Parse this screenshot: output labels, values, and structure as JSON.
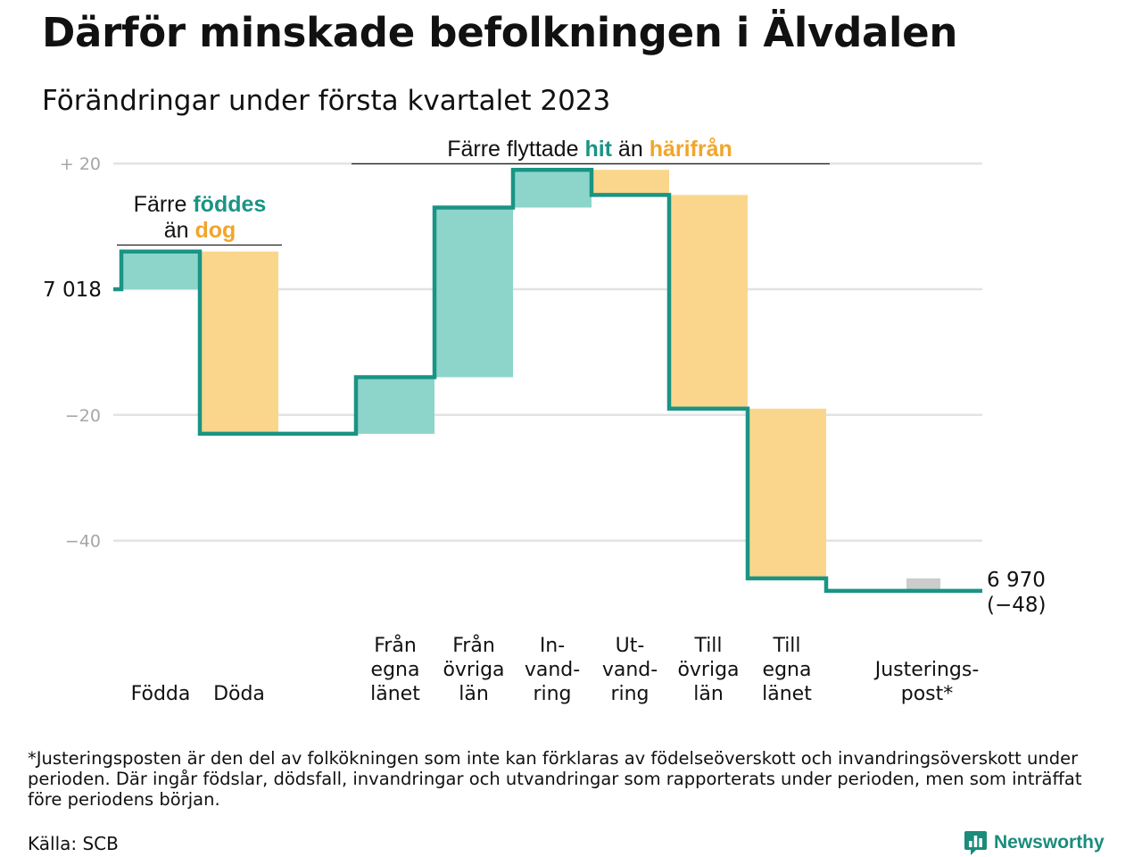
{
  "header": {
    "title": "Därför minskade befolkningen i Älvdalen",
    "subtitle": "Förändringar under första kvartalet 2023"
  },
  "chart_data": {
    "type": "waterfall",
    "ylim": [
      -48,
      22
    ],
    "gridlines": true,
    "y_ticks": [
      {
        "value": 20,
        "label": "+ 20"
      },
      {
        "value": -20,
        "label": "−20"
      },
      {
        "value": -40,
        "label": "−40"
      }
    ],
    "start": {
      "value": 0,
      "label": "7 018"
    },
    "end": {
      "value": -48,
      "label_lines": [
        "6 970",
        "(−48)"
      ]
    },
    "steps": [
      {
        "label_lines": [
          "Födda"
        ],
        "change": 6,
        "kind": "increase"
      },
      {
        "label_lines": [
          "Döda"
        ],
        "change": -29,
        "kind": "decrease"
      },
      {
        "label_lines": [
          "Från",
          "egna",
          "länet"
        ],
        "change": 9,
        "kind": "increase"
      },
      {
        "label_lines": [
          "Från",
          "övriga",
          "län"
        ],
        "change": 27,
        "kind": "increase"
      },
      {
        "label_lines": [
          "In-",
          "vand-",
          "ring"
        ],
        "change": 6,
        "kind": "increase"
      },
      {
        "label_lines": [
          "Ut-",
          "vand-",
          "ring"
        ],
        "change": -4,
        "kind": "decrease"
      },
      {
        "label_lines": [
          "Till",
          "övriga",
          "län"
        ],
        "change": -34,
        "kind": "decrease"
      },
      {
        "label_lines": [
          "Till",
          "egna",
          "länet"
        ],
        "change": -27,
        "kind": "decrease"
      },
      {
        "label_lines": [
          "Justerings-",
          "post*"
        ],
        "change": -2,
        "kind": "adjustment"
      }
    ],
    "annotations": {
      "births": {
        "line1": [
          {
            "text": "Färre ",
            "style": "plain"
          },
          {
            "text": "föddes",
            "style": "increase"
          }
        ],
        "line2": [
          {
            "text": "än ",
            "style": "plain"
          },
          {
            "text": "dog",
            "style": "decrease"
          }
        ]
      },
      "migration": [
        {
          "text": "Färre flyttade ",
          "style": "plain"
        },
        {
          "text": "hit",
          "style": "increase"
        },
        {
          "text": " än ",
          "style": "plain"
        },
        {
          "text": "härifrån",
          "style": "decrease"
        }
      ]
    },
    "colors": {
      "increase_fill": "#8dd5cb",
      "decrease_fill": "#fad68d",
      "adjustment_fill": "#cccccc",
      "step_line": "#1a9484",
      "increase_text": "#1a9484",
      "decrease_text": "#f2a52b",
      "grid": "#e3e3e3",
      "tick_text": "#a6a6a6"
    }
  },
  "footnote": "*Justeringsposten är den del av folkökningen som inte kan förklaras av födelseöverskott och invandringsöverskott under perioden. Där ingår födslar, dödsfall, invandringar och utvandringar som rapporterats under perioden, men som inträffat före periodens början.",
  "source": "Källa: SCB",
  "brand": {
    "name": "Newsworthy",
    "color": "#1a8c7c",
    "icon": "bar-chart-badge-icon"
  }
}
